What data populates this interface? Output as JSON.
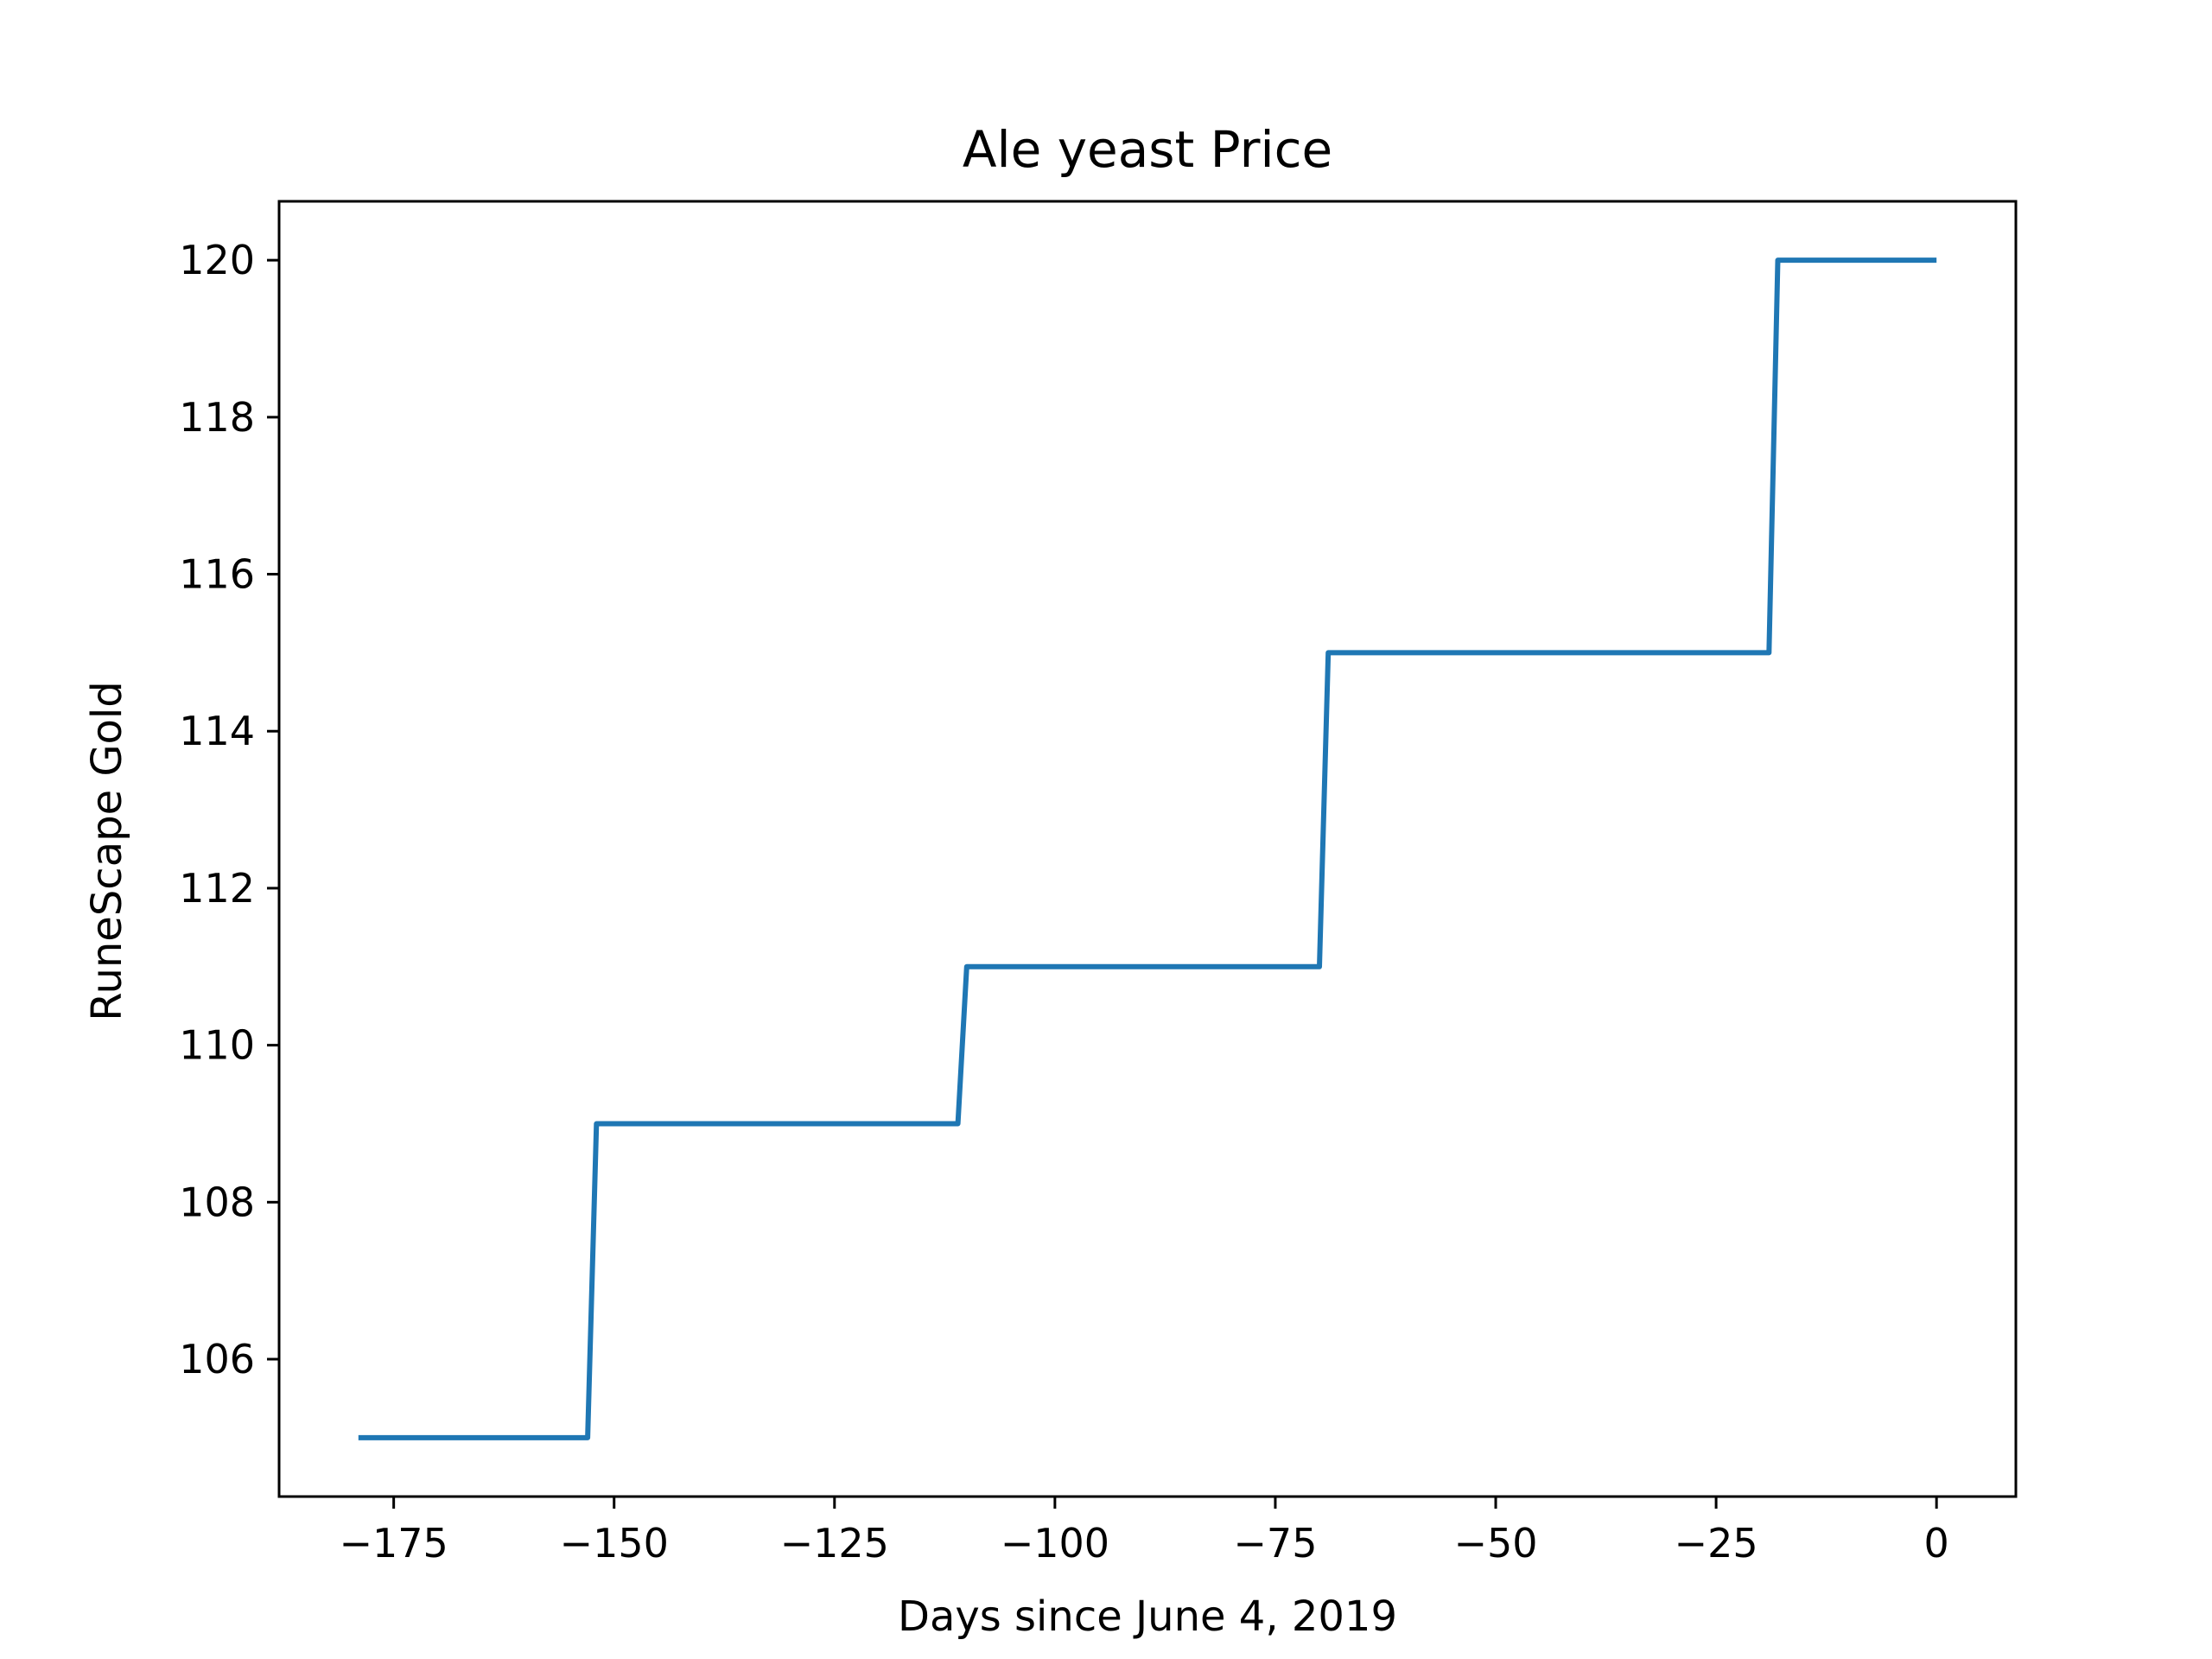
{
  "chart_data": {
    "type": "line",
    "title": "Ale yeast Price",
    "xlabel": "Days since June 4, 2019",
    "ylabel": "RuneScape Gold",
    "xlim": [
      -188,
      9
    ],
    "ylim": [
      104.25,
      120.75
    ],
    "xticks": [
      -175,
      -150,
      -125,
      -100,
      -75,
      -50,
      -25,
      0
    ],
    "xtick_labels": [
      "−175",
      "−150",
      "−125",
      "−100",
      "−75",
      "−50",
      "−25",
      "0"
    ],
    "yticks": [
      106,
      108,
      110,
      112,
      114,
      116,
      118,
      120
    ],
    "ytick_labels": [
      "106",
      "108",
      "110",
      "112",
      "114",
      "116",
      "118",
      "120"
    ],
    "grid": false,
    "series": [
      {
        "color": "#1f77b4",
        "x": [
          -179,
          -153,
          -152,
          -111,
          -110,
          -70,
          -69,
          -19,
          -18,
          0
        ],
        "y": [
          105,
          105,
          109,
          109,
          111,
          111,
          115,
          115,
          120,
          120
        ]
      }
    ]
  }
}
